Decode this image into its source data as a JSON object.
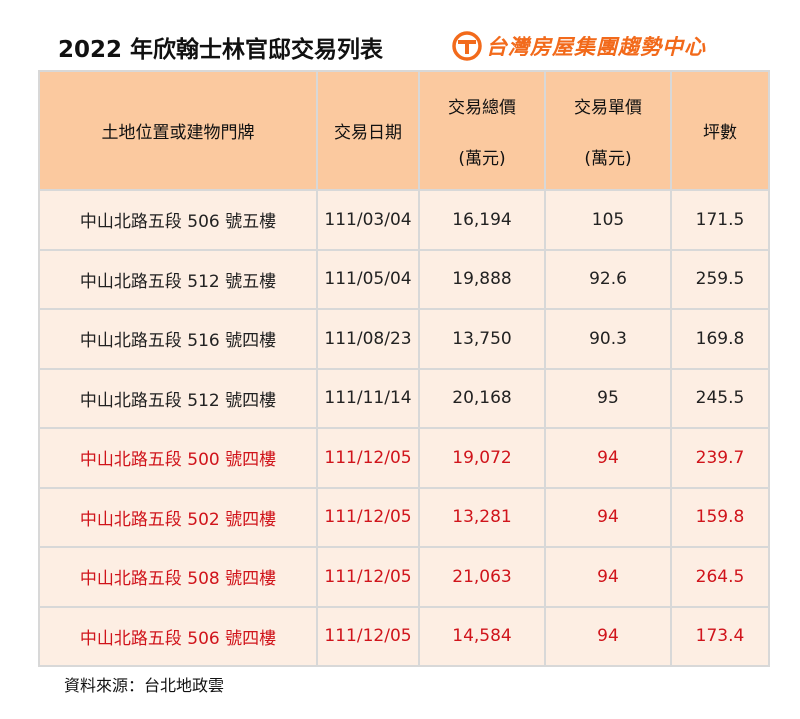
{
  "title": "2022 年欣翰士林官邸交易列表",
  "brand": {
    "name": "台灣房屋集團趨勢中心",
    "logo_icon": "taiwan-realty-logo-icon",
    "color": "#f26a1b"
  },
  "table": {
    "headers": [
      {
        "line1": "土地位置或建物門牌",
        "line2": ""
      },
      {
        "line1": "交易日期",
        "line2": ""
      },
      {
        "line1": "交易總價",
        "line2": "(萬元)"
      },
      {
        "line1": "交易單價",
        "line2": "(萬元)"
      },
      {
        "line1": "坪數",
        "line2": ""
      }
    ],
    "rows": [
      {
        "address": "中山北路五段 506 號五樓",
        "date": "111/03/04",
        "total": "16,194",
        "unit": "105",
        "area": "171.5",
        "highlight": false
      },
      {
        "address": "中山北路五段 512 號五樓",
        "date": "111/05/04",
        "total": "19,888",
        "unit": "92.6",
        "area": "259.5",
        "highlight": false
      },
      {
        "address": "中山北路五段 516 號四樓",
        "date": "111/08/23",
        "total": "13,750",
        "unit": "90.3",
        "area": "169.8",
        "highlight": false
      },
      {
        "address": "中山北路五段 512 號四樓",
        "date": "111/11/14",
        "total": "20,168",
        "unit": "95",
        "area": "245.5",
        "highlight": false
      },
      {
        "address": "中山北路五段 500 號四樓",
        "date": "111/12/05",
        "total": "19,072",
        "unit": "94",
        "area": "239.7",
        "highlight": true
      },
      {
        "address": "中山北路五段 502 號四樓",
        "date": "111/12/05",
        "total": "13,281",
        "unit": "94",
        "area": "159.8",
        "highlight": true
      },
      {
        "address": "中山北路五段 508 號四樓",
        "date": "111/12/05",
        "total": "21,063",
        "unit": "94",
        "area": "264.5",
        "highlight": true
      },
      {
        "address": "中山北路五段 506 號四樓",
        "date": "111/12/05",
        "total": "14,584",
        "unit": "94",
        "area": "173.4",
        "highlight": true
      }
    ],
    "colors": {
      "header_bg": "#fbc99f",
      "row_bg": "#fdeee3",
      "highlight_text": "#d0141b",
      "border": "#d8d8d8"
    }
  },
  "source": "資料來源：台北地政雲"
}
